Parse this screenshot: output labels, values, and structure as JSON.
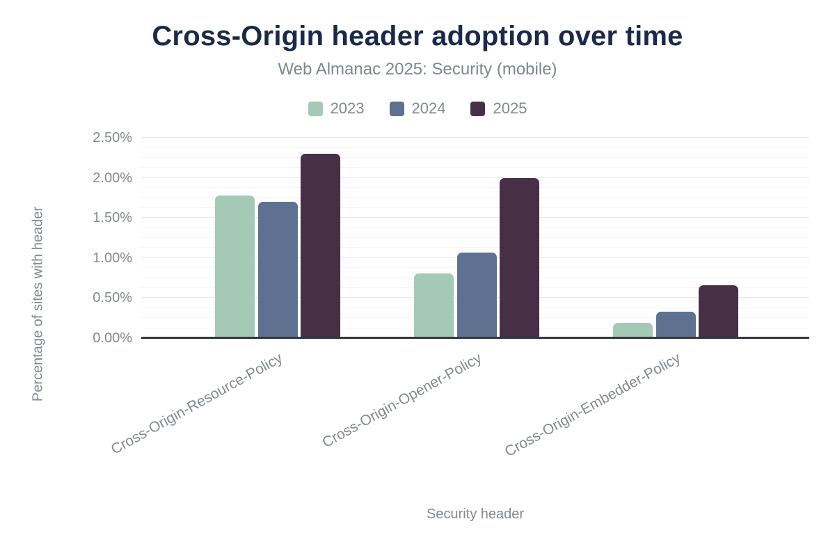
{
  "chart_data": {
    "type": "bar",
    "title": "Cross-Origin header adoption over time",
    "subtitle": "Web Almanac 2025: Security (mobile)",
    "xlabel": "Security header",
    "ylabel": "Percentage of sites with header",
    "categories": [
      "Cross-Origin-Resource-Policy",
      "Cross-Origin-Opener-Policy",
      "Cross-Origin-Embedder-Policy"
    ],
    "series": [
      {
        "name": "2023",
        "color": "#a4c9b5",
        "values": [
          1.78,
          0.81,
          0.19
        ]
      },
      {
        "name": "2024",
        "color": "#5f7190",
        "values": [
          1.7,
          1.07,
          0.33
        ]
      },
      {
        "name": "2025",
        "color": "#472f45",
        "values": [
          2.3,
          2.0,
          0.66
        ]
      }
    ],
    "ylim": [
      0,
      2.5
    ],
    "yticks": [
      "0.00%",
      "0.50%",
      "1.00%",
      "1.50%",
      "2.00%",
      "2.50%"
    ],
    "ytick_values": [
      0,
      0.5,
      1.0,
      1.5,
      2.0,
      2.5
    ],
    "minor_tick_step": 0.125,
    "grid": true,
    "legend_position": "top"
  },
  "colors": {
    "title": "#1b2a49",
    "subtitle": "#7f878d",
    "muted_text": "#83898f",
    "axis_line": "#33383d",
    "grid_major": "#e9e9e9",
    "grid_minor": "#f5f5f5",
    "background": "#ffffff"
  }
}
